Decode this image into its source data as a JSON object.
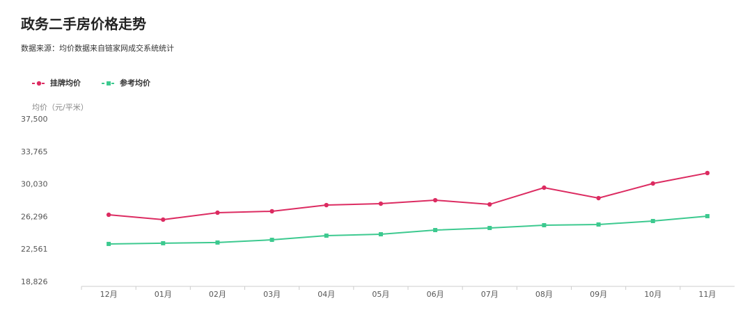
{
  "chart_data": {
    "type": "line",
    "title": "政务二手房价格走势",
    "subtitle": "数据来源：均价数据来自链家网成交系统统计",
    "y_label": "均价（元/平米）",
    "categories": [
      "12月",
      "01月",
      "02月",
      "03月",
      "04月",
      "05月",
      "06月",
      "07月",
      "08月",
      "09月",
      "10月",
      "11月"
    ],
    "series": [
      {
        "name": "挂牌均价",
        "color": "#dc2b61",
        "marker": "circle",
        "values": [
          26570,
          26010,
          26810,
          26970,
          27680,
          27840,
          28240,
          27760,
          29680,
          28480,
          30160,
          31360
        ]
      },
      {
        "name": "参考均价",
        "color": "#3cc98f",
        "marker": "square",
        "values": [
          23220,
          23300,
          23380,
          23690,
          24170,
          24330,
          24810,
          25050,
          25370,
          25450,
          25850,
          26410
        ]
      }
    ],
    "ylim": [
      18826,
      37500
    ],
    "yticks": [
      {
        "value": 18826,
        "label": "18,826"
      },
      {
        "value": 22561,
        "label": "22,561"
      },
      {
        "value": 26296,
        "label": "26,296"
      },
      {
        "value": 30030,
        "label": "30,030"
      },
      {
        "value": 33765,
        "label": "33,765"
      },
      {
        "value": 37500,
        "label": "37,500"
      }
    ],
    "legend": "top-left",
    "grid": false
  }
}
